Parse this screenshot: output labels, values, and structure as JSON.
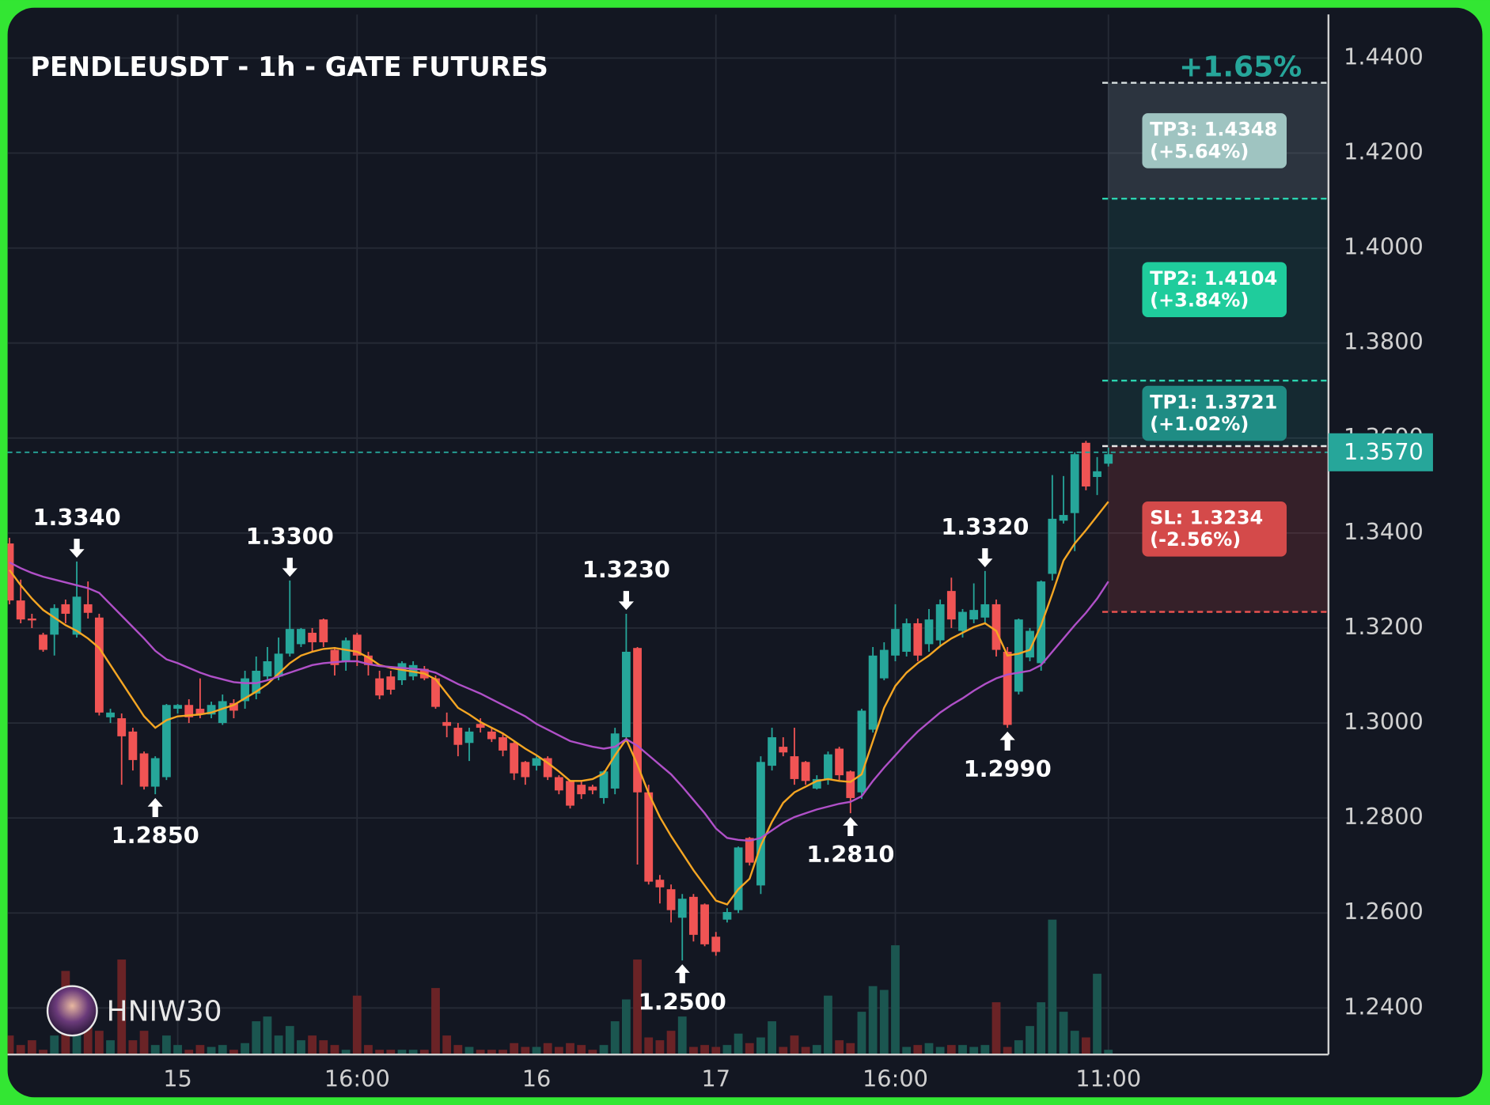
{
  "chart_data": {
    "type": "candlestick",
    "title": "PENDLEUSDT - 1h - GATE FUTURES",
    "change_label": "+1.65%",
    "watermark": "HNIW30",
    "categories": [
      null,
      null,
      null,
      null,
      null,
      null,
      null,
      null,
      null,
      null,
      null,
      null,
      null,
      null,
      null,
      "15",
      null,
      null,
      null,
      null,
      null,
      null,
      null,
      null,
      null,
      null,
      null,
      null,
      null,
      null,
      null,
      "16:00",
      null,
      null,
      null,
      null,
      null,
      null,
      null,
      null,
      null,
      null,
      null,
      null,
      null,
      null,
      null,
      "16",
      null,
      null,
      null,
      null,
      null,
      null,
      null,
      null,
      null,
      null,
      null,
      null,
      null,
      null,
      null,
      "17",
      null,
      null,
      null,
      null,
      null,
      null,
      null,
      null,
      null,
      null,
      null,
      null,
      null,
      null,
      null,
      "16:00",
      null,
      null,
      null,
      null,
      null,
      null,
      null,
      null,
      null,
      null,
      null,
      null,
      null,
      null,
      null,
      null,
      null,
      null,
      "11:00"
    ],
    "open": [
      1.3378,
      1.3258,
      1.322,
      1.3186,
      1.3186,
      1.325,
      1.3186,
      1.325,
      1.3222,
      1.3012,
      1.301,
      1.2982,
      1.2936,
      1.2866,
      1.2886,
      1.303,
      1.3038,
      1.303,
      1.3018,
      1.3,
      1.3042,
      1.3046,
      1.3062,
      1.3098,
      1.3098,
      1.3146,
      1.3166,
      1.319,
      1.3218,
      1.3154,
      1.313,
      1.3186,
      1.3142,
      1.3094,
      1.3098,
      1.309,
      1.3098,
      1.3114,
      1.3094,
      1.3002,
      1.299,
      1.2958,
      1.2998,
      1.2982,
      1.297,
      1.2958,
      1.2918,
      1.291,
      1.2926,
      1.2886,
      1.2878,
      1.287,
      1.2866,
      1.2842,
      1.2862,
      1.297,
      1.3158,
      1.2854,
      1.267,
      1.265,
      1.259,
      1.2634,
      1.2618,
      1.255,
      1.2586,
      1.2606,
      1.2758,
      1.2658,
      1.291,
      1.295,
      1.293,
      1.2918,
      1.2862,
      1.2882,
      1.2946,
      1.2898,
      1.2854,
      1.2986,
      1.3094,
      1.3142,
      1.315,
      1.321,
      1.3166,
      1.3174,
      1.3278,
      1.3194,
      1.3218,
      1.3222,
      1.325,
      1.315,
      1.3066,
      1.3138,
      1.3126,
      1.3314,
      1.3426,
      1.3442,
      1.359,
      1.3518,
      1.3546
    ],
    "high": [
      1.339,
      1.3302,
      1.323,
      1.319,
      1.325,
      1.326,
      1.334,
      1.3298,
      1.323,
      1.303,
      1.302,
      1.299,
      1.294,
      1.293,
      1.304,
      1.304,
      1.305,
      1.3094,
      1.3045,
      1.306,
      1.305,
      1.311,
      1.314,
      1.316,
      1.318,
      1.33,
      1.32,
      1.32,
      1.322,
      1.316,
      1.318,
      1.319,
      1.315,
      1.311,
      1.311,
      1.313,
      1.313,
      1.312,
      1.31,
      1.3022,
      1.3,
      1.299,
      1.301,
      1.299,
      1.298,
      1.296,
      1.292,
      1.293,
      1.293,
      1.289,
      1.288,
      1.288,
      1.287,
      1.29,
      1.299,
      1.323,
      1.316,
      1.287,
      1.268,
      1.266,
      1.264,
      1.264,
      1.262,
      1.256,
      1.261,
      1.274,
      1.276,
      1.293,
      1.299,
      1.297,
      1.299,
      1.292,
      1.289,
      1.294,
      1.295,
      1.29,
      1.303,
      1.316,
      1.317,
      1.325,
      1.322,
      1.322,
      1.324,
      1.326,
      1.3306,
      1.324,
      1.3294,
      1.332,
      1.326,
      1.316,
      1.322,
      1.32,
      1.33,
      1.3522,
      1.352,
      1.357,
      1.3594,
      1.356,
      1.358
    ],
    "low": [
      1.325,
      1.321,
      1.32,
      1.315,
      1.3142,
      1.321,
      1.318,
      1.322,
      1.3016,
      1.3,
      1.287,
      1.29,
      1.286,
      1.285,
      1.288,
      1.302,
      1.3,
      1.301,
      1.301,
      1.2996,
      1.301,
      1.303,
      1.305,
      1.309,
      1.309,
      1.314,
      1.316,
      1.315,
      1.316,
      1.31,
      1.311,
      1.312,
      1.31,
      1.305,
      1.306,
      1.308,
      1.309,
      1.309,
      1.303,
      1.297,
      1.293,
      1.292,
      1.298,
      1.296,
      1.293,
      1.288,
      1.287,
      1.29,
      1.288,
      1.285,
      1.282,
      1.284,
      1.285,
      1.283,
      1.285,
      1.296,
      1.2702,
      1.266,
      1.262,
      1.258,
      1.25,
      1.254,
      1.253,
      1.251,
      1.258,
      1.26,
      1.27,
      1.264,
      1.29,
      1.293,
      1.287,
      1.287,
      1.286,
      1.287,
      1.288,
      1.281,
      1.284,
      1.298,
      1.309,
      1.313,
      1.314,
      1.313,
      1.315,
      1.316,
      1.32,
      1.318,
      1.321,
      1.321,
      1.314,
      1.299,
      1.306,
      1.313,
      1.311,
      1.33,
      1.342,
      1.3362,
      1.349,
      1.348,
      1.354
    ],
    "close": [
      1.3258,
      1.3218,
      1.3216,
      1.3154,
      1.3242,
      1.323,
      1.3266,
      1.3232,
      1.3022,
      1.3022,
      1.2972,
      1.2922,
      1.2866,
      1.2926,
      1.3038,
      1.3038,
      1.3012,
      1.3018,
      1.3038,
      1.3046,
      1.3026,
      1.3094,
      1.311,
      1.313,
      1.3146,
      1.3198,
      1.3198,
      1.317,
      1.317,
      1.3122,
      1.3174,
      1.3142,
      1.3122,
      1.3058,
      1.307,
      1.3126,
      1.3122,
      1.3094,
      1.3034,
      1.2994,
      1.2954,
      1.2982,
      1.299,
      1.2966,
      1.2942,
      1.2894,
      1.2886,
      1.2926,
      1.2886,
      1.2858,
      1.2826,
      1.285,
      1.2858,
      1.2898,
      1.2978,
      1.315,
      1.2854,
      1.2666,
      1.2654,
      1.2606,
      1.263,
      1.2554,
      1.2534,
      1.2518,
      1.2602,
      1.2738,
      1.2706,
      1.2918,
      1.297,
      1.2938,
      1.2882,
      1.2878,
      1.2882,
      1.2934,
      1.289,
      1.2842,
      1.3026,
      1.3142,
      1.3154,
      1.3198,
      1.321,
      1.3142,
      1.3218,
      1.325,
      1.3218,
      1.3234,
      1.3238,
      1.325,
      1.3154,
      1.2996,
      1.3218,
      1.3194,
      1.3298,
      1.343,
      1.3438,
      1.3566,
      1.3498,
      1.353,
      1.3566
    ],
    "volume": [
      20,
      10,
      15,
      5,
      20,
      88,
      70,
      40,
      25,
      15,
      100,
      15,
      25,
      10,
      20,
      10,
      5,
      10,
      8,
      10,
      5,
      12,
      35,
      40,
      20,
      30,
      15,
      20,
      15,
      10,
      5,
      62,
      10,
      5,
      5,
      5,
      5,
      5,
      70,
      20,
      10,
      8,
      5,
      5,
      5,
      12,
      8,
      8,
      12,
      8,
      12,
      10,
      5,
      10,
      35,
      58,
      100,
      18,
      15,
      25,
      40,
      8,
      10,
      8,
      10,
      22,
      12,
      18,
      35,
      8,
      20,
      8,
      10,
      62,
      15,
      12,
      45,
      72,
      68,
      115,
      8,
      10,
      12,
      8,
      10,
      10,
      8,
      10,
      55,
      8,
      15,
      30,
      55,
      142,
      45,
      25,
      18,
      85,
      5
    ],
    "volume_lim": [
      0,
      150
    ],
    "up_color": "#26a69a",
    "down_color": "#f05454",
    "volume_up_color": "#1b5650",
    "volume_down_color": "#6a2326",
    "moving_averages": [
      {
        "color": "#f5a623",
        "values": [
          1.3322,
          1.329,
          1.3262,
          1.3238,
          1.3222,
          1.3206,
          1.3194,
          1.3178,
          1.3158,
          1.3122,
          1.3086,
          1.305,
          1.3014,
          1.299,
          1.3006,
          1.3014,
          1.3016,
          1.3018,
          1.3022,
          1.303,
          1.3038,
          1.3052,
          1.3066,
          1.3082,
          1.3104,
          1.3126,
          1.3142,
          1.315,
          1.3156,
          1.3158,
          1.3154,
          1.315,
          1.3138,
          1.3122,
          1.3116,
          1.3112,
          1.3108,
          1.3104,
          1.3092,
          1.3062,
          1.3032,
          1.3018,
          1.3002,
          1.299,
          1.2978,
          1.2962,
          1.2946,
          1.2932,
          1.2916,
          1.2898,
          1.2878,
          1.2878,
          1.2882,
          1.2894,
          1.2932,
          1.2966,
          1.2912,
          1.2852,
          1.2802,
          1.2762,
          1.2726,
          1.269,
          1.2658,
          1.2626,
          1.2618,
          1.265,
          1.2672,
          1.2742,
          1.2792,
          1.2832,
          1.2854,
          1.2866,
          1.2878,
          1.2882,
          1.2878,
          1.2876,
          1.2892,
          1.2962,
          1.3032,
          1.3078,
          1.3106,
          1.3126,
          1.3142,
          1.3162,
          1.3178,
          1.319,
          1.3202,
          1.321,
          1.3194,
          1.3142,
          1.3146,
          1.3154,
          1.3206,
          1.3272,
          1.3342,
          1.3378,
          1.3406,
          1.3436,
          1.3466
        ]
      },
      {
        "color": "#b050c8",
        "values": [
          1.3338,
          1.3326,
          1.3316,
          1.3308,
          1.3302,
          1.3296,
          1.329,
          1.3284,
          1.3274,
          1.325,
          1.3226,
          1.3202,
          1.3178,
          1.3152,
          1.3134,
          1.3126,
          1.3116,
          1.3106,
          1.3098,
          1.3092,
          1.3086,
          1.3084,
          1.3084,
          1.309,
          1.3098,
          1.3106,
          1.3114,
          1.3122,
          1.3126,
          1.3128,
          1.313,
          1.313,
          1.3124,
          1.312,
          1.3118,
          1.3116,
          1.3114,
          1.3112,
          1.3106,
          1.3094,
          1.3082,
          1.3072,
          1.3062,
          1.305,
          1.3038,
          1.3026,
          1.3014,
          1.2998,
          1.2986,
          1.2974,
          1.2962,
          1.2956,
          1.295,
          1.2946,
          1.295,
          1.2966,
          1.2952,
          1.2932,
          1.2912,
          1.2892,
          1.2866,
          1.2838,
          1.281,
          1.2778,
          1.2758,
          1.2754,
          1.2752,
          1.2758,
          1.2774,
          1.279,
          1.2802,
          1.281,
          1.2818,
          1.2824,
          1.283,
          1.2834,
          1.2846,
          1.2878,
          1.2906,
          1.2932,
          1.2958,
          1.2982,
          1.3002,
          1.3022,
          1.3038,
          1.3052,
          1.3068,
          1.3082,
          1.3094,
          1.3102,
          1.3106,
          1.311,
          1.3122,
          1.315,
          1.3178,
          1.3206,
          1.3232,
          1.3262,
          1.3298
        ]
      }
    ],
    "ylim": [
      1.2302,
      1.4492
    ],
    "yticks": [
      {
        "value": 1.24,
        "label": "1.2400"
      },
      {
        "value": 1.26,
        "label": "1.2600"
      },
      {
        "value": 1.28,
        "label": "1.2800"
      },
      {
        "value": 1.3,
        "label": "1.3000"
      },
      {
        "value": 1.32,
        "label": "1.3200"
      },
      {
        "value": 1.34,
        "label": "1.3400"
      },
      {
        "value": 1.36,
        "label": "1.3600"
      },
      {
        "value": 1.38,
        "label": "1.3800"
      },
      {
        "value": 1.4,
        "label": "1.4000"
      },
      {
        "value": 1.42,
        "label": "1.4200"
      },
      {
        "value": 1.44,
        "label": "1.4400"
      }
    ],
    "grid": true,
    "price_line": {
      "value": 1.357,
      "label": "1.3570",
      "color": "#26a69a"
    },
    "entry": 1.3583,
    "targets": [
      {
        "label": "TP3: 1.4348",
        "pct": "(+5.64%)",
        "value": 1.4348,
        "color": "#d8e0e0",
        "box_color": "#9fc4c1",
        "zone_color": "rgba(110,130,140,0.28)"
      },
      {
        "label": "TP2: 1.4104",
        "pct": "(+3.84%)",
        "value": 1.4104,
        "color": "#2bd4b0",
        "box_color": "#1fcc9c",
        "zone_color": "rgba(38,166,154,0.13)"
      },
      {
        "label": "TP1: 1.3721",
        "pct": "(+1.02%)",
        "value": 1.3721,
        "color": "#2bd4b0",
        "box_color": "#1f8c84",
        "zone_color": "rgba(38,166,154,0.13)"
      }
    ],
    "stop": {
      "label": "SL: 1.3234",
      "pct": "(-2.56%)",
      "value": 1.3234,
      "color": "#ef5350",
      "box_color": "#d44a4a",
      "zone_color": "rgba(239,83,80,0.16)"
    },
    "extremes": [
      {
        "label": "1.3340",
        "value": 1.334,
        "candle": 6,
        "kind": "high"
      },
      {
        "label": "1.2850",
        "value": 1.285,
        "candle": 13,
        "kind": "low"
      },
      {
        "label": "1.3300",
        "value": 1.33,
        "candle": 25,
        "kind": "high"
      },
      {
        "label": "1.3230",
        "value": 1.323,
        "candle": 55,
        "kind": "high"
      },
      {
        "label": "1.2500",
        "value": 1.25,
        "candle": 60,
        "kind": "low"
      },
      {
        "label": "1.2810",
        "value": 1.281,
        "candle": 75,
        "kind": "low"
      },
      {
        "label": "1.3320",
        "value": 1.332,
        "candle": 87,
        "kind": "high"
      },
      {
        "label": "1.2990",
        "value": 1.299,
        "candle": 89,
        "kind": "low"
      }
    ]
  }
}
